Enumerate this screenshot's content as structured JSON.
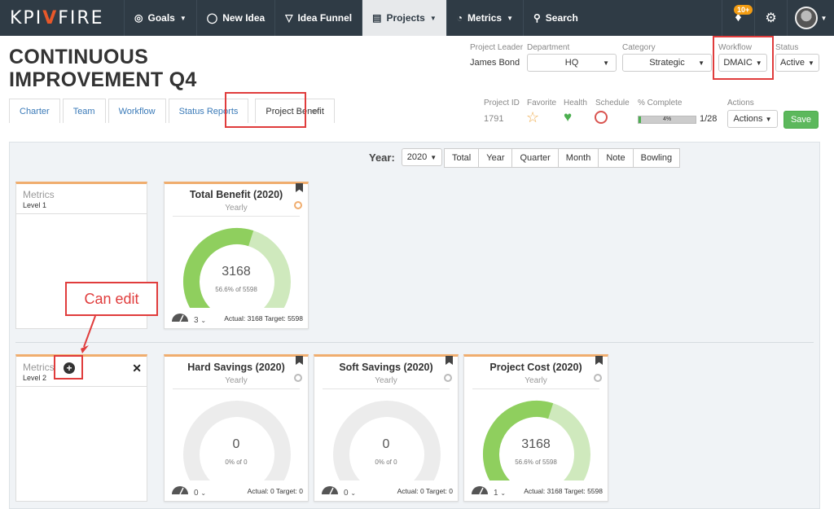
{
  "navbar": {
    "logo_left": "KPI",
    "logo_mark": "V",
    "logo_right": "FIRE",
    "items": [
      {
        "label": "Goals",
        "icon": "compass-icon"
      },
      {
        "label": "New Idea",
        "icon": "lightbulb-icon"
      },
      {
        "label": "Idea Funnel",
        "icon": "funnel-icon"
      },
      {
        "label": "Projects",
        "icon": "projects-icon"
      },
      {
        "label": "Metrics",
        "icon": "gauge-icon"
      },
      {
        "label": "Search",
        "icon": "search-icon"
      }
    ],
    "notifications_badge": "10+"
  },
  "header": {
    "title_line1": "CONTINUOUS",
    "title_line2": "IMPROVEMENT Q4",
    "project_leader_label": "Project Leader",
    "project_leader": "James Bond",
    "department_label": "Department",
    "department": "HQ",
    "category_label": "Category",
    "category": "Strategic",
    "workflow_label": "Workflow",
    "workflow": "DMAIC",
    "status_label": "Status",
    "status": "Active",
    "project_id_label": "Project ID",
    "project_id": "1791",
    "favorite_label": "Favorite",
    "health_label": "Health",
    "schedule_label": "Schedule",
    "percent_complete_label": "% Complete",
    "percent_complete": "4%",
    "percent_complete_value": 4,
    "tasks": "1/28",
    "actions_label": "Actions",
    "actions_button": "Actions",
    "save_button": "Save"
  },
  "tabs": [
    "Charter",
    "Team",
    "Workflow",
    "Status Reports",
    "Project Benefit"
  ],
  "tabs_more": "•••",
  "year_bar": {
    "label": "Year:",
    "selected_year": "2020",
    "periods": [
      "Total",
      "Year",
      "Quarter",
      "Month",
      "Note",
      "Bowling"
    ]
  },
  "level1": {
    "title": "Metrics",
    "level": "Level 1"
  },
  "level2": {
    "title": "Metrics",
    "level": "Level 2"
  },
  "cards": [
    {
      "title": "Total Benefit (2020)",
      "sub": "Yearly",
      "value": "3168",
      "detail": "56.6% of 5598",
      "fraction": 0.566,
      "footer": "Actual: 3168 Target: 5598",
      "count": "3"
    },
    {
      "title": "Hard Savings (2020)",
      "sub": "Yearly",
      "value": "0",
      "detail": "0% of 0",
      "fraction": 0,
      "footer": "Actual: 0 Target: 0",
      "count": "0"
    },
    {
      "title": "Soft Savings (2020)",
      "sub": "Yearly",
      "value": "0",
      "detail": "0% of 0",
      "fraction": 0,
      "footer": "Actual: 0 Target: 0",
      "count": "0"
    },
    {
      "title": "Project Cost (2020)",
      "sub": "Yearly",
      "value": "3168",
      "detail": "56.6% of 5598",
      "fraction": 0.566,
      "footer": "Actual: 3168 Target: 5598",
      "count": "1"
    }
  ],
  "annotation": {
    "callout": "Can edit"
  },
  "colors": {
    "navbar": "#2f3b45",
    "accent_orange": "#f0ad6e",
    "gauge_actual": "#8fcf5e",
    "gauge_remaining": "#cfe9bd",
    "gauge_empty": "#ececec",
    "save_green": "#5cb85c",
    "annotation_red": "#e03c3c"
  }
}
